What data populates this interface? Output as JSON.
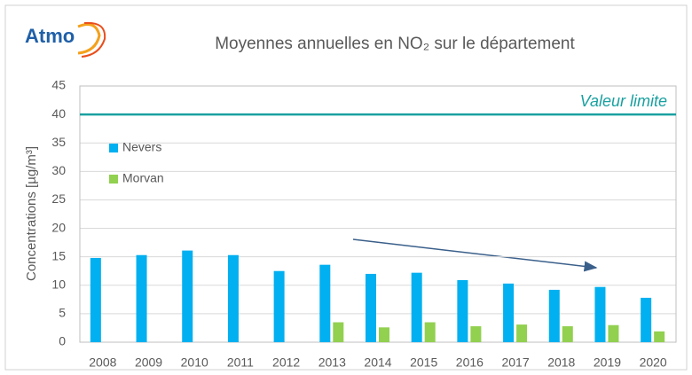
{
  "chart_data": {
    "type": "bar",
    "logo": "Atmo",
    "title": "Moyennes annuelles en NO₂ sur le département",
    "y_label": "Concentrations [µg/m³]",
    "categories": [
      "2008",
      "2009",
      "2010",
      "2011",
      "2012",
      "2013",
      "2014",
      "2015",
      "2016",
      "2017",
      "2018",
      "2019",
      "2020"
    ],
    "series": [
      {
        "name": "Nevers",
        "color": "#00b0f0",
        "values": [
          14.8,
          15.3,
          16.1,
          15.3,
          12.5,
          13.6,
          12.0,
          12.2,
          10.9,
          10.3,
          9.2,
          9.7,
          7.8
        ]
      },
      {
        "name": "Morvan",
        "color": "#92d050",
        "values": [
          null,
          null,
          null,
          null,
          null,
          3.5,
          2.6,
          3.5,
          2.8,
          3.1,
          2.8,
          3.0,
          1.9
        ]
      }
    ],
    "reference_line": {
      "label": "Valeur limite",
      "value": 40,
      "color": "#1aa0a0"
    },
    "ylim": [
      0,
      45
    ],
    "yticks": [
      0,
      5,
      10,
      15,
      20,
      25,
      30,
      35,
      40,
      45
    ],
    "grid": true,
    "legend": "upper left"
  }
}
